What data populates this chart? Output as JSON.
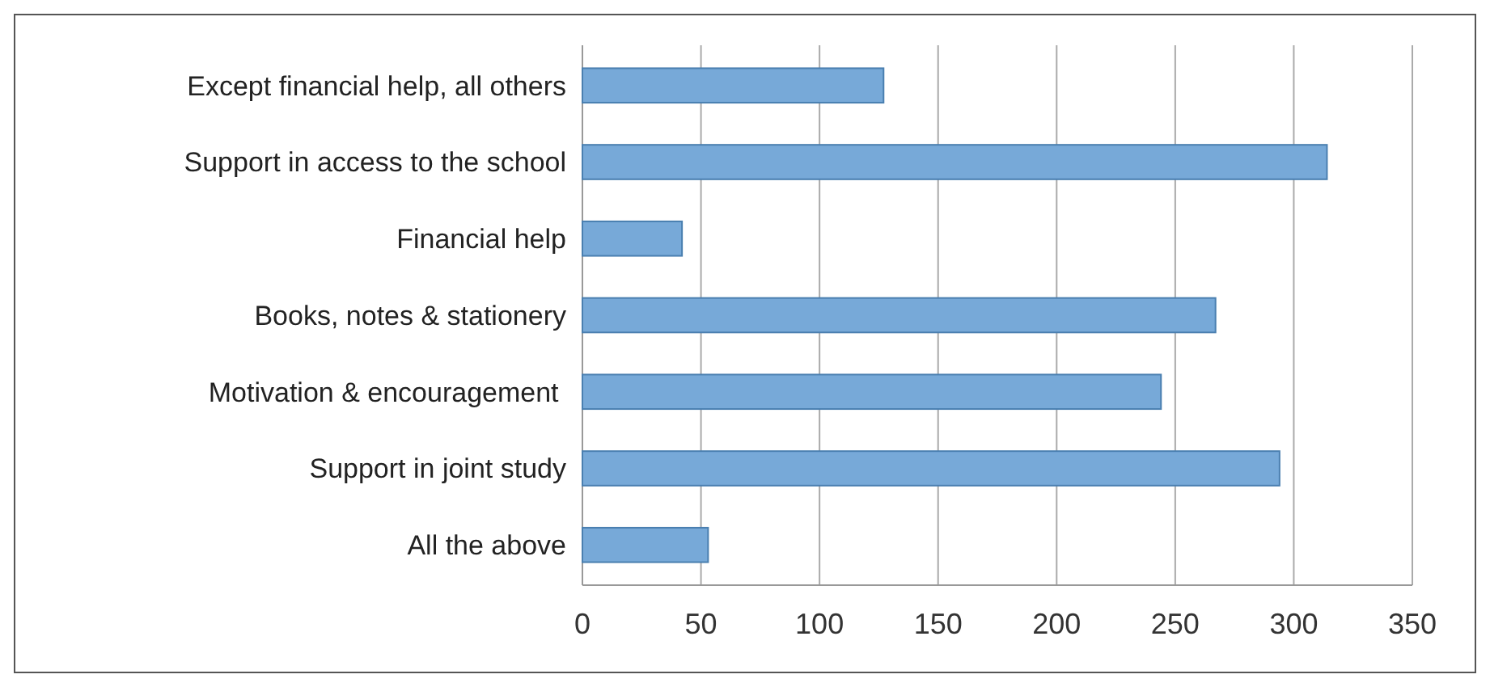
{
  "chart_data": {
    "type": "bar",
    "orientation": "horizontal",
    "categories": [
      "Except financial help, all others",
      "Support in access to the school",
      "Financial help",
      "Books, notes & stationery",
      "Motivation & encouragement ",
      "Support in joint study",
      "All the above"
    ],
    "values": [
      127,
      314,
      42,
      267,
      244,
      294,
      53
    ],
    "color": "#77a9d8",
    "xlim": [
      0,
      350
    ],
    "xticks": [
      0,
      50,
      100,
      150,
      200,
      250,
      300,
      350
    ],
    "grid": "x"
  }
}
